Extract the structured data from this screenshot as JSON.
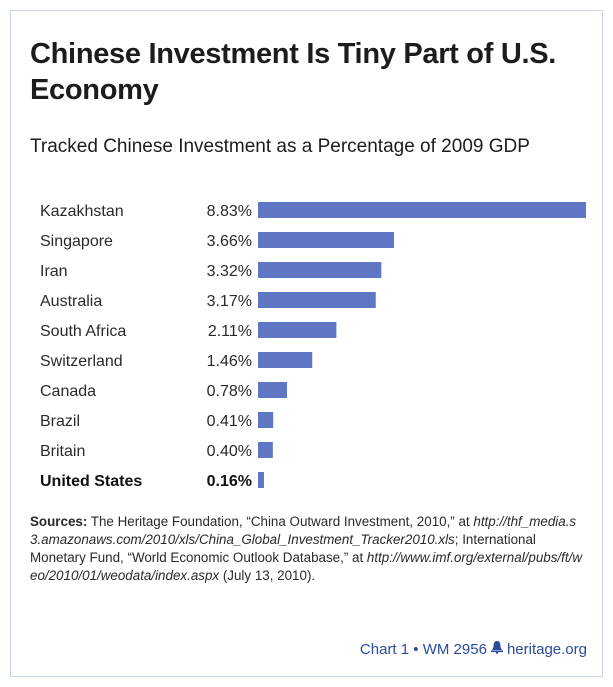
{
  "title": "Chinese Investment Is Tiny Part of U.S. Economy",
  "subtitle": "Tracked Chinese Investment as a Percentage of 2009 GDP",
  "chart_data": {
    "type": "bar",
    "orientation": "horizontal",
    "title": "Tracked Chinese Investment as a Percentage of 2009 GDP",
    "categories": [
      "Kazakhstan",
      "Singapore",
      "Iran",
      "Australia",
      "South Africa",
      "Switzerland",
      "Canada",
      "Brazil",
      "Britain",
      "United States"
    ],
    "values": [
      8.83,
      3.66,
      3.32,
      3.17,
      2.11,
      1.46,
      0.78,
      0.41,
      0.4,
      0.16
    ],
    "value_labels": [
      "8.83%",
      "3.66%",
      "3.32%",
      "3.17%",
      "2.11%",
      "1.46%",
      "0.78%",
      "0.41%",
      "0.40%",
      "0.16%"
    ],
    "highlighted_category": "United States",
    "bar_color": "#5e76c4",
    "grid": false
  },
  "sources": {
    "label": "Sources:",
    "text": "The Heritage Foundation, “China Outward Investment, 2010,” at ",
    "url1": "http://thf_media.s3.amazonaws.com/2010/xls/China_Global_Investment_Tracker2010.xls",
    "text2": "; International Monetary Fund, “World Economic Outlook Database,” at ",
    "url2": "http://www.imf.org/external/pubs/ft/weo/2010/01/weodata/index.aspx",
    "text3": " (July 13, 2010)."
  },
  "footer": {
    "chart": "Chart 1",
    "sep": "•",
    "wm": "WM 2956",
    "site": "heritage.org"
  },
  "colors": {
    "bar": "#5e76c4",
    "footer": "#2a4a9a",
    "frame": "#c9d3e6"
  }
}
